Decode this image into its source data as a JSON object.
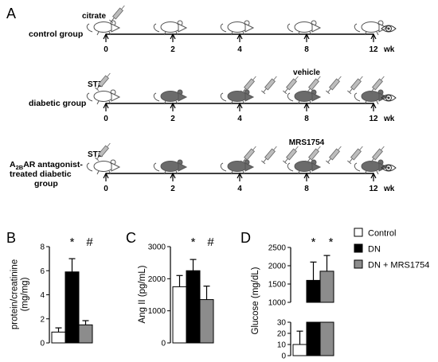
{
  "panel_a": {
    "letter": "A",
    "rows": [
      {
        "label_lines": [
          "control group"
        ],
        "subscript_parts": null,
        "agent": "citrate",
        "agent_type": "syringe",
        "annotation": "",
        "ticks": [
          "0",
          "2",
          "4",
          "8",
          "12"
        ],
        "unit": "wk",
        "mouse_colors": [
          "white",
          "white",
          "white",
          "white",
          "white"
        ],
        "injections": false,
        "eye_icon": true
      },
      {
        "label_lines": [
          "diabetic group"
        ],
        "subscript_parts": null,
        "agent": "STZ",
        "agent_type": "syringe",
        "annotation": "vehicle",
        "ticks": [
          "0",
          "2",
          "4",
          "8",
          "12"
        ],
        "unit": "wk",
        "mouse_colors": [
          "white",
          "gray",
          "gray",
          "gray",
          "gray"
        ],
        "injections": true,
        "eye_icon": true
      },
      {
        "label_lines": [
          "A2BAR antagonist-",
          "treated diabetic",
          "group"
        ],
        "subscript_parts": [
          "A",
          "2B",
          "AR antagonist-"
        ],
        "agent": "STZ",
        "agent_type": "syringe",
        "annotation": "MRS1754",
        "ticks": [
          "0",
          "2",
          "4",
          "8",
          "12"
        ],
        "unit": "wk",
        "mouse_colors": [
          "white",
          "gray",
          "gray",
          "gray",
          "gray"
        ],
        "injections": true,
        "eye_icon": true
      }
    ],
    "colors": {
      "white_mouse": "#ffffff",
      "gray_mouse": "#6b6b6b",
      "syringe": "#8a8a8a"
    },
    "icons": [
      "syringe-icon",
      "mouse-icon",
      "eye-icon"
    ]
  },
  "legend": {
    "entries": [
      {
        "label": "Control",
        "color": "#ffffff"
      },
      {
        "label": "DN",
        "color": "#000000"
      },
      {
        "label": "DN + MRS1754",
        "color": "#8c8c8c"
      }
    ]
  },
  "chart_data": [
    {
      "type": "bar",
      "letter": "B",
      "title": "",
      "xlabel": "",
      "ylabel": "protein/creatinine (mg/mg)",
      "ylabel_lines": [
        "protein/creatinine",
        "(mg/mg)"
      ],
      "categories": [
        "Control",
        "DN",
        "DN + MRS1754"
      ],
      "values": [
        0.9,
        5.9,
        1.5
      ],
      "errors": [
        0.35,
        1.1,
        0.35
      ],
      "colors": [
        "#ffffff",
        "#000000",
        "#8c8c8c"
      ],
      "ylim": [
        0,
        8
      ],
      "yticks": [
        "0",
        "2",
        "4",
        "6",
        "8"
      ],
      "significance": [
        "*",
        "#"
      ]
    },
    {
      "type": "bar",
      "letter": "C",
      "title": "",
      "xlabel": "",
      "ylabel": "Ang II (pg/mL)",
      "ylabel_lines": [
        "Ang II (pg/mL)"
      ],
      "categories": [
        "Control",
        "DN",
        "DN + MRS1754"
      ],
      "values": [
        1750,
        2250,
        1350
      ],
      "errors": [
        350,
        350,
        420
      ],
      "colors": [
        "#ffffff",
        "#000000",
        "#8c8c8c"
      ],
      "ylim": [
        0,
        3000
      ],
      "yticks": [
        "0",
        "1000",
        "2000",
        "3000"
      ],
      "significance": [
        "*",
        "#"
      ]
    },
    {
      "type": "bar",
      "letter": "D",
      "title": "",
      "xlabel": "",
      "ylabel": "Glucose (mg/dL)",
      "ylabel_lines": [
        "Glucose (mg/dL)"
      ],
      "categories": [
        "Control",
        "DN",
        "DN + MRS1754"
      ],
      "values": [
        10,
        1600,
        1850
      ],
      "errors": [
        12,
        500,
        430
      ],
      "colors": [
        "#ffffff",
        "#000000",
        "#8c8c8c"
      ],
      "axis_break": {
        "lower_range": [
          0,
          30
        ],
        "upper_range": [
          1000,
          2500
        ]
      },
      "yticks_lower": [
        "0",
        "10",
        "20",
        "30"
      ],
      "yticks_upper": [
        "1000",
        "1500",
        "2000",
        "2500"
      ],
      "significance": [
        "*",
        "*"
      ]
    }
  ]
}
